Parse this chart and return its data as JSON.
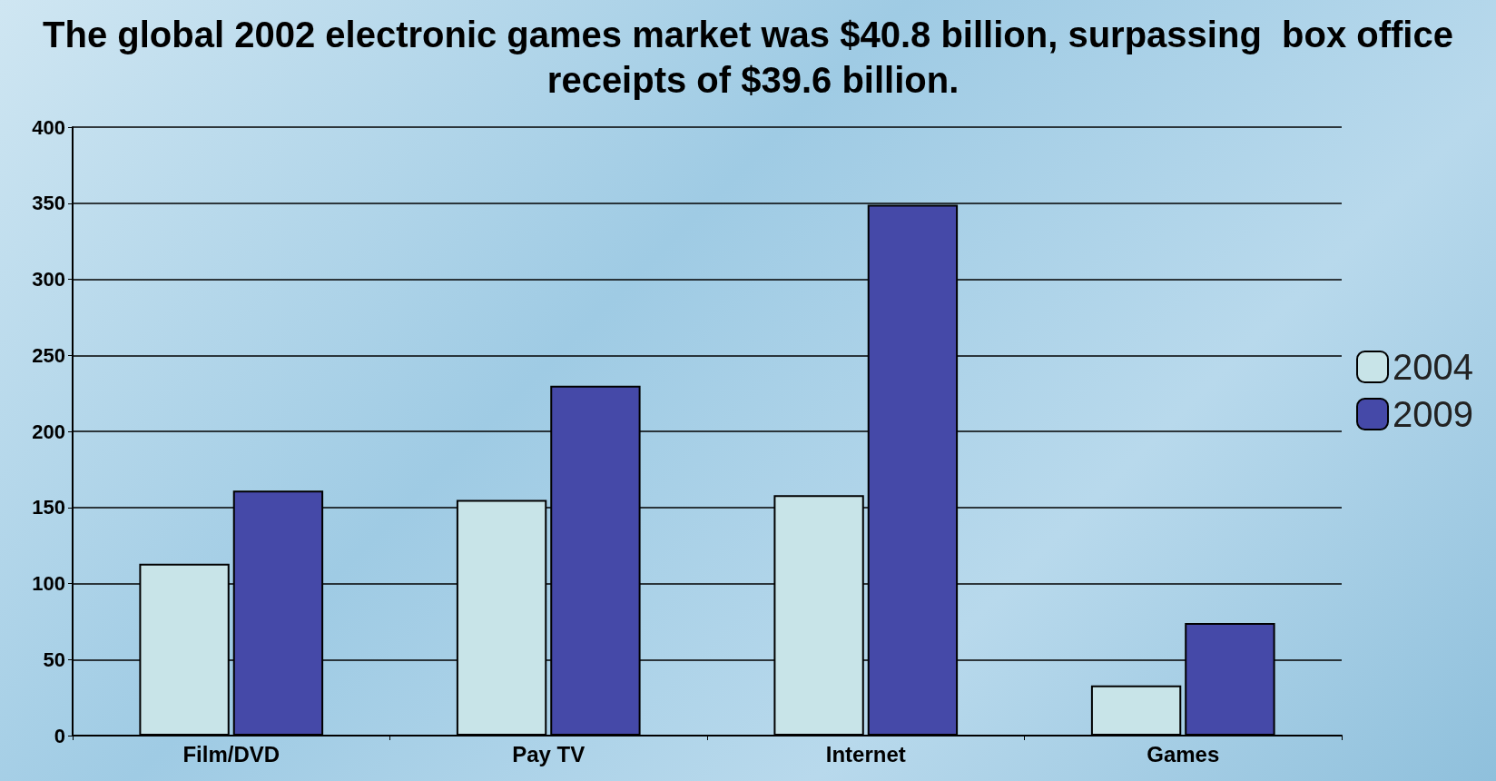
{
  "chart_data": {
    "type": "bar",
    "title": "The global 2002 electronic games market was $40.8 billion, surpassing  box office receipts of $39.6 billion.",
    "categories": [
      "Film/DVD",
      "Pay TV",
      "Internet",
      "Games"
    ],
    "series": [
      {
        "name": "2004",
        "color": "#c8e4e8",
        "values": [
          113,
          155,
          158,
          33
        ]
      },
      {
        "name": "2009",
        "color": "#4549a8",
        "values": [
          161,
          230,
          349,
          74
        ]
      }
    ],
    "ylim": [
      0,
      400
    ],
    "yticks": [
      0,
      50,
      100,
      150,
      200,
      250,
      300,
      350,
      400
    ],
    "grid": "y",
    "legend": "right"
  }
}
